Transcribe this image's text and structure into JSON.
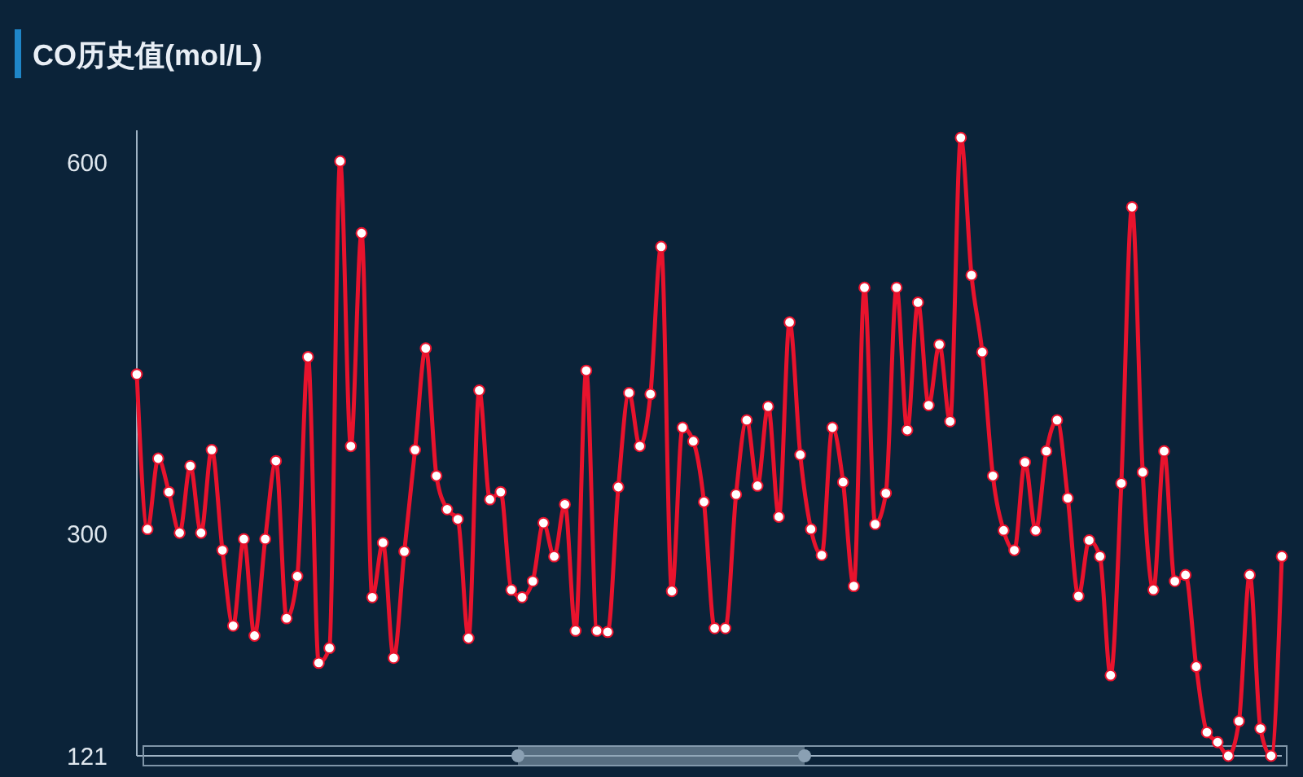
{
  "chart_data": {
    "type": "line",
    "title": "CO历史值(mol/L)",
    "categories": [
      null,
      null,
      null,
      null,
      null,
      null,
      null,
      null,
      null,
      null,
      null,
      null,
      null,
      null,
      null,
      null,
      null,
      null,
      null,
      null,
      null,
      null,
      null,
      null,
      null,
      null,
      null,
      null,
      null,
      null,
      null,
      null,
      null,
      null,
      null,
      null,
      null,
      null,
      null,
      null,
      null,
      null,
      null,
      null,
      null,
      null,
      null,
      null,
      null,
      null,
      null,
      null,
      null,
      null,
      null,
      null,
      null,
      null,
      null,
      null,
      null,
      null,
      null,
      null,
      null,
      null,
      null,
      null,
      null,
      null,
      null,
      null,
      null,
      null,
      null,
      null,
      null,
      null,
      null,
      null,
      null,
      null,
      null,
      null,
      null,
      null,
      null,
      null,
      null,
      null,
      null,
      null,
      null,
      null,
      null,
      null,
      null,
      null,
      null,
      null,
      null,
      null,
      null,
      null,
      null,
      null,
      null,
      null
    ],
    "series": [
      {
        "color": "#e8132d",
        "values": [
          429,
          304,
          361,
          334,
          301,
          355,
          301,
          368,
          287,
          226,
          296,
          218,
          296,
          359,
          232,
          266,
          443,
          196,
          208,
          601,
          371,
          543,
          249,
          293,
          200,
          286,
          368,
          450,
          347,
          320,
          312,
          216,
          416,
          328,
          334,
          255,
          249,
          262,
          309,
          282,
          324,
          222,
          432,
          222,
          221,
          338,
          414,
          371,
          413,
          532,
          254,
          386,
          375,
          326,
          224,
          224,
          332,
          392,
          339,
          403,
          314,
          471,
          364,
          304,
          283,
          386,
          342,
          258,
          499,
          308,
          333,
          499,
          384,
          487,
          404,
          453,
          391,
          620,
          509,
          447,
          347,
          303,
          287,
          358,
          303,
          367,
          392,
          329,
          250,
          295,
          282,
          186,
          341,
          564,
          350,
          255,
          367,
          262,
          267,
          193,
          140,
          132,
          121,
          149,
          267,
          143,
          121,
          282
        ]
      }
    ],
    "ylim": [
      121,
      626
    ],
    "yticks": [
      121,
      300,
      600
    ],
    "tick_labels": "y",
    "marker": "circle",
    "line_style": "solid"
  }
}
